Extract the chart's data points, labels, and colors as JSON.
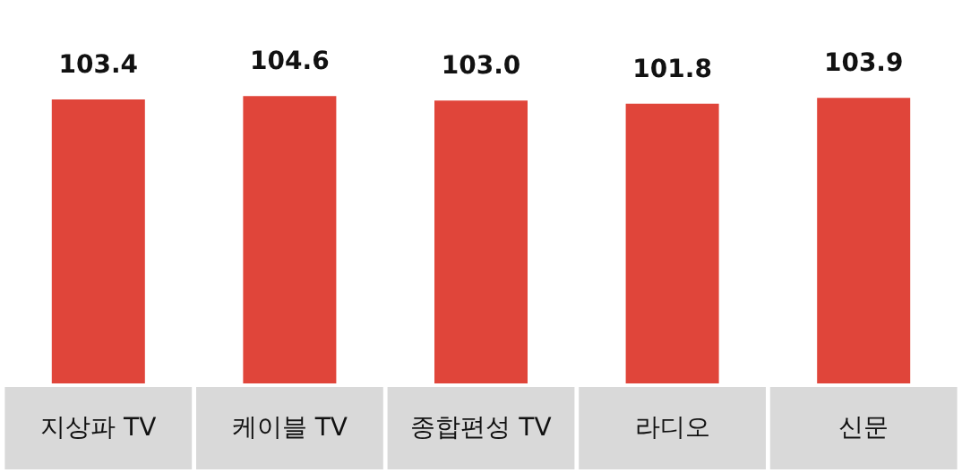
{
  "chart_data": {
    "type": "bar",
    "categories": [
      "지상파 TV",
      "케이블 TV",
      "종합편성 TV",
      "라디오",
      "신문"
    ],
    "values": [
      103.4,
      104.6,
      103.0,
      101.8,
      103.9
    ],
    "value_labels": [
      "103.4",
      "104.6",
      "103.0",
      "101.8",
      "103.9"
    ],
    "color": "#e0453a",
    "tick_labels": "x"
  }
}
